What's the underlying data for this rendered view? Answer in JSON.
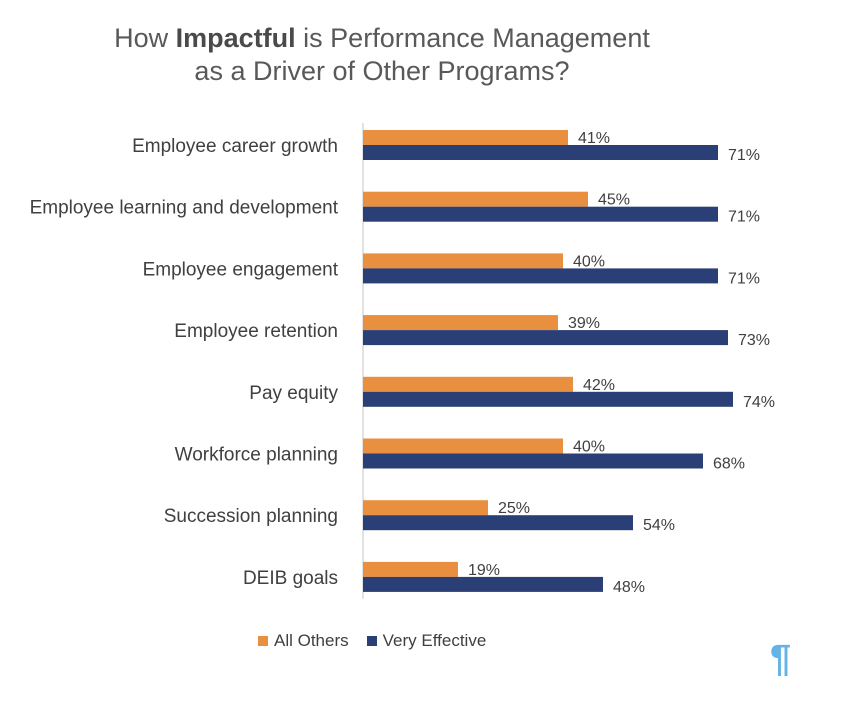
{
  "colors": {
    "all_others": "#e8903f",
    "very_effective": "#2a3f75",
    "pilcrow": "#62b3e6"
  },
  "chart_data": {
    "type": "bar",
    "orientation": "horizontal",
    "title_parts": [
      "How ",
      "Impactful",
      " is Performance Management",
      "as a Driver of Other Programs?"
    ],
    "categories": [
      "Employee career growth",
      "Employee learning and development",
      "Employee engagement",
      "Employee retention",
      "Pay equity",
      "Workforce planning",
      "Succession planning",
      "DEIB goals"
    ],
    "series": [
      {
        "name": "All Others",
        "values": [
          41,
          45,
          40,
          39,
          42,
          40,
          25,
          19
        ]
      },
      {
        "name": "Very Effective",
        "values": [
          71,
          71,
          71,
          73,
          74,
          68,
          54,
          48
        ]
      }
    ],
    "value_suffix": "%",
    "xlim": [
      0,
      100
    ],
    "grid": false,
    "legend_position": "bottom"
  },
  "footer": {
    "pilcrow": "¶"
  }
}
